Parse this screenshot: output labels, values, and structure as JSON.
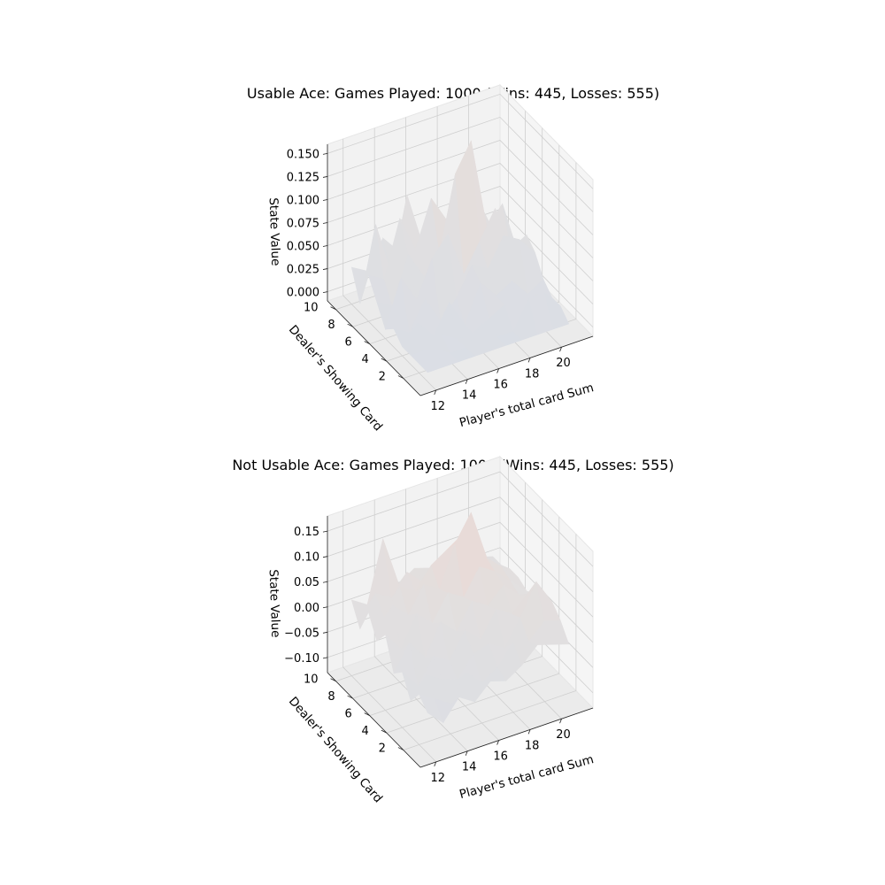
{
  "chart_data": [
    {
      "type": "surface3d",
      "title": "Usable Ace: Games Played: 1000 (Wins: 445, Losses: 555)",
      "xlabel": "Player's total card Sum",
      "ylabel": "Dealer's Showing Card",
      "zlabel": "State Value",
      "x": [
        12,
        13,
        14,
        15,
        16,
        17,
        18,
        19,
        20,
        21
      ],
      "y": [
        1,
        2,
        3,
        4,
        5,
        6,
        7,
        8,
        9,
        10
      ],
      "xticks": [
        "12",
        "14",
        "16",
        "18",
        "20"
      ],
      "yticks": [
        "2",
        "4",
        "6",
        "8",
        "10"
      ],
      "zticks": [
        "0.000",
        "0.025",
        "0.050",
        "0.075",
        "0.100",
        "0.125",
        "0.150"
      ],
      "zlim": [
        -0.01,
        0.16
      ],
      "z": [
        [
          0,
          0,
          0,
          0,
          0,
          0,
          0,
          0,
          0,
          0
        ],
        [
          0,
          0.01,
          0,
          0,
          0.02,
          0,
          0,
          0.03,
          0.03,
          0.01
        ],
        [
          0,
          0,
          0.01,
          0,
          0,
          0.01,
          0.02,
          0,
          0.02,
          0.01
        ],
        [
          0,
          0.02,
          0,
          0.03,
          0,
          0.04,
          0.02,
          0.03,
          0.01,
          0.02
        ],
        [
          0.01,
          0,
          0.03,
          0,
          0.02,
          0.05,
          0.04,
          0.07,
          0.06,
          0.04
        ],
        [
          0,
          0.05,
          0.02,
          0.06,
          0.08,
          0.03,
          0.06,
          0.09,
          0.04,
          0.05
        ],
        [
          0.02,
          0.01,
          0.06,
          0.03,
          0.05,
          0.13,
          0.16,
          0.06,
          0.08,
          0.02
        ],
        [
          0.04,
          0.03,
          0.09,
          0.05,
          0.1,
          0.07,
          0.05,
          0.08,
          0.04,
          0.03
        ],
        [
          0,
          0.08,
          0.02,
          0.1,
          0.04,
          0.06,
          0.04,
          0.03,
          0.02,
          0.01
        ],
        [
          0.03,
          0.02,
          0.05,
          0.03,
          0.04,
          0.02,
          0.03,
          0.02,
          0.01,
          0.02
        ]
      ]
    },
    {
      "type": "surface3d",
      "title": "Not Usable Ace: Games Played: 1000 (Wins: 445, Losses: 555)",
      "xlabel": "Player's total card Sum",
      "ylabel": "Dealer's Showing Card",
      "zlabel": "State Value",
      "x": [
        12,
        13,
        14,
        15,
        16,
        17,
        18,
        19,
        20,
        21
      ],
      "y": [
        1,
        2,
        3,
        4,
        5,
        6,
        7,
        8,
        9,
        10
      ],
      "xticks": [
        "12",
        "14",
        "16",
        "18",
        "20"
      ],
      "yticks": [
        "2",
        "4",
        "6",
        "8",
        "10"
      ],
      "zticks": [
        "−0.10",
        "−0.05",
        "0.00",
        "0.05",
        "0.10",
        "0.15"
      ],
      "zlim": [
        -0.13,
        0.18
      ],
      "z": [
        [
          -0.05,
          -0.08,
          -0.04,
          -0.06,
          -0.03,
          -0.04,
          -0.02,
          0.01,
          0.0,
          -0.01
        ],
        [
          -0.03,
          -0.05,
          -0.07,
          -0.02,
          -0.05,
          -0.03,
          0.01,
          0.0,
          0.03,
          0.02
        ],
        [
          -0.06,
          -0.02,
          -0.04,
          -0.05,
          -0.01,
          0.0,
          -0.02,
          0.03,
          0.09,
          0.04
        ],
        [
          -0.02,
          -0.06,
          -0.01,
          -0.03,
          0.02,
          -0.01,
          0.04,
          0.02,
          0.05,
          0.01
        ],
        [
          -0.04,
          0.01,
          -0.03,
          0.03,
          0.0,
          0.05,
          0.03,
          0.06,
          0.03,
          0.02
        ],
        [
          0.02,
          -0.02,
          0.04,
          0.01,
          0.06,
          0.04,
          0.09,
          0.07,
          0.04,
          0.01
        ],
        [
          -0.01,
          0.05,
          0.02,
          0.07,
          0.05,
          0.13,
          0.18,
          0.08,
          0.05,
          0.02
        ],
        [
          0.03,
          0.01,
          0.06,
          0.04,
          0.08,
          0.1,
          0.12,
          0.06,
          0.04,
          0.02
        ],
        [
          -0.02,
          0.04,
          0.02,
          0.06,
          0.03,
          0.05,
          0.04,
          0.03,
          0.02,
          0.01
        ],
        [
          0.02,
          0.0,
          0.12,
          0.02,
          0.04,
          0.03,
          0.02,
          0.01,
          0.02,
          0.01
        ]
      ]
    }
  ]
}
